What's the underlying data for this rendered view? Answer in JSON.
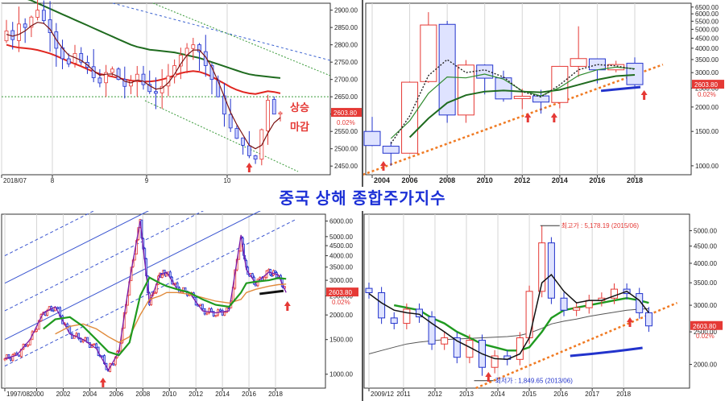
{
  "page_title": "중국 상해 종합주가지수",
  "chart_data": [
    {
      "id": "daily",
      "type": "candlestick",
      "x_ticks": [
        "2018/07",
        "8",
        "9",
        "10"
      ],
      "y_ticks": [
        "2900.00",
        "2850.00",
        "2800.00",
        "2750.00",
        "2700.00",
        "2650.00",
        "2600.00",
        "2550.00",
        "2500.00",
        "2450.00"
      ],
      "ylim": [
        2425,
        2920
      ],
      "last_price": "2603.80",
      "change": "0.02%",
      "annotations": [
        "상승",
        "마감"
      ],
      "close": [
        2840,
        2815,
        2860,
        2850,
        2880,
        2900,
        2870,
        2835,
        2790,
        2760,
        2745,
        2775,
        2750,
        2735,
        2705,
        2690,
        2720,
        2730,
        2700,
        2680,
        2695,
        2715,
        2685,
        2665,
        2660,
        2680,
        2710,
        2740,
        2770,
        2790,
        2800,
        2780,
        2740,
        2700,
        2650,
        2600,
        2560,
        2530,
        2510,
        2480,
        2470,
        2555,
        2640,
        2600,
        2603.8
      ],
      "ma_red": [
        2800,
        2795,
        2792,
        2790,
        2788,
        2785,
        2780,
        2775,
        2768,
        2760,
        2752,
        2745,
        2738,
        2730,
        2722,
        2716,
        2712,
        2708,
        2704,
        2700,
        2697,
        2695,
        2694,
        2694,
        2696,
        2700,
        2705,
        2712,
        2718,
        2722,
        2724,
        2722,
        2716,
        2708,
        2698,
        2688,
        2678,
        2670,
        2664,
        2660,
        2658,
        2662,
        2666,
        2664,
        2660
      ],
      "ma_green": [
        2950,
        2945,
        2940,
        2934,
        2928,
        2920,
        2912,
        2904,
        2896,
        2888,
        2880,
        2872,
        2864,
        2856,
        2848,
        2840,
        2832,
        2824,
        2816,
        2808,
        2800,
        2794,
        2790,
        2786,
        2784,
        2782,
        2780,
        2778,
        2774,
        2770,
        2766,
        2762,
        2756,
        2750,
        2744,
        2738,
        2732,
        2726,
        2720,
        2715,
        2712,
        2710,
        2708,
        2706,
        2704
      ],
      "ma_black": [
        2830,
        2825,
        2830,
        2840,
        2855,
        2865,
        2862,
        2845,
        2815,
        2790,
        2770,
        2763,
        2755,
        2742,
        2725,
        2712,
        2715,
        2716,
        2708,
        2695,
        2690,
        2698,
        2695,
        2682,
        2672,
        2675,
        2690,
        2715,
        2745,
        2770,
        2785,
        2785,
        2765,
        2735,
        2695,
        2650,
        2605,
        2570,
        2540,
        2510,
        2500,
        2510,
        2545,
        2575,
        2590
      ],
      "guides": {
        "green_level": 2650
      }
    },
    {
      "id": "yearly",
      "type": "candlestick",
      "y_scale": "log",
      "x_ticks": [
        "2004",
        "2006",
        "2008",
        "2010",
        "2012",
        "2014",
        "2016",
        "2018"
      ],
      "y_ticks": [
        "6500.00",
        "6000.00",
        "5500.00",
        "5000.00",
        "4500.00",
        "4000.00",
        "3500.00",
        "3000.00",
        "2500.00",
        "2000.00",
        "1500.00",
        "1000.00"
      ],
      "ylim": [
        900,
        6800
      ],
      "last_price": "2603.80",
      "change": "0.02%",
      "years": [
        2004,
        2005,
        2006,
        2007,
        2008,
        2009,
        2010,
        2011,
        2012,
        2013,
        2014,
        2015,
        2016,
        2017,
        2018
      ],
      "open": [
        1500,
        1260,
        1160,
        2700,
        5300,
        1820,
        3280,
        2820,
        2210,
        2280,
        2110,
        3230,
        3530,
        3100,
        3350
      ],
      "close": [
        1270,
        1160,
        2680,
        5260,
        1820,
        3280,
        2810,
        2200,
        2270,
        2120,
        3230,
        3540,
        3100,
        3300,
        2604
      ],
      "high": [
        1780,
        1330,
        2700,
        6120,
        5520,
        3480,
        3310,
        3070,
        2480,
        2450,
        3240,
        5180,
        3540,
        3450,
        3590
      ],
      "low": [
        1260,
        1000,
        1160,
        2660,
        1660,
        1660,
        2320,
        2130,
        1950,
        1850,
        1970,
        2850,
        2640,
        3010,
        2480
      ],
      "ma_green": [
        null,
        null,
        1400,
        1750,
        2100,
        2300,
        2400,
        2430,
        2400,
        2380,
        2450,
        2600,
        2760,
        2880,
        2920
      ],
      "ma_dark": [
        null,
        1380,
        1700,
        2350,
        2850,
        2820,
        2950,
        2780,
        2420,
        2280,
        2520,
        2900,
        3100,
        3200,
        3140
      ],
      "ma_dotted": [
        null,
        1300,
        1800,
        2900,
        3500,
        3000,
        3100,
        2850,
        2400,
        2250,
        2600,
        3100,
        3300,
        3250,
        3120
      ],
      "support": {
        "from": [
          2003.5,
          900
        ],
        "to": [
          2019.5,
          3300
        ]
      }
    },
    {
      "id": "monthly",
      "type": "candlestick",
      "y_scale": "log",
      "x_ticks": [
        "1997/08",
        "2000",
        "2002",
        "2004",
        "2006",
        "2008",
        "2010",
        "2012",
        "2014",
        "2016",
        "2018"
      ],
      "y_ticks": [
        "6000.00",
        "5000.00",
        "4500.00",
        "4000.00",
        "3500.00",
        "3000.00",
        "2500.00",
        "2000.00",
        "1500.00",
        "1000.00"
      ],
      "ylim": [
        850,
        6500
      ],
      "last_price": "2603.80",
      "change": "0.02%",
      "t": [
        1997.6,
        1998.5,
        1999.5,
        2000.5,
        2001.4,
        2002.5,
        2003.5,
        2004.5,
        2005.4,
        2006.2,
        2007.0,
        2007.8,
        2008.5,
        2009.3,
        2009.8,
        2010.6,
        2011.5,
        2012.5,
        2013.5,
        2014.5,
        2015.4,
        2015.8,
        2016.5,
        2017.5,
        2018.2,
        2018.8
      ],
      "price": [
        1200,
        1250,
        1500,
        2050,
        2200,
        1600,
        1500,
        1350,
        1050,
        1300,
        3000,
        6000,
        2300,
        3200,
        3300,
        2700,
        2600,
        2100,
        2050,
        2100,
        5100,
        3400,
        2900,
        3300,
        3200,
        2600
      ],
      "ma_green": [
        null,
        null,
        null,
        1700,
        1900,
        1950,
        1750,
        1500,
        1300,
        1250,
        1450,
        2500,
        3100,
        2900,
        2800,
        2700,
        2600,
        2400,
        2250,
        2200,
        2600,
        2900,
        2950,
        3000,
        3080,
        3050
      ],
      "ma_orange": [
        null,
        null,
        null,
        null,
        1600,
        1750,
        1800,
        1700,
        1550,
        1450,
        1550,
        2000,
        2400,
        2500,
        2600,
        2600,
        2550,
        2450,
        2350,
        2300,
        2400,
        2600,
        2700,
        2800,
        2850,
        2870
      ],
      "channel": {
        "slope_per_year": 0.034,
        "bases": [
          4000,
          2900,
          2100,
          1500,
          1100
        ]
      }
    },
    {
      "id": "quarterly",
      "type": "candlestick",
      "y_scale": "log",
      "x_ticks": [
        "2009/12",
        "2011",
        "2012",
        "2013",
        "2014",
        "2015",
        "2016",
        "2017",
        "2018"
      ],
      "y_ticks": [
        "5000.00",
        "4500.00",
        "4000.00",
        "3500.00",
        "3000.00",
        "2500.00",
        "2000.00"
      ],
      "ylim": [
        1700,
        5600
      ],
      "last_price": "2603.80",
      "change": "0.02%",
      "annotations": [
        "최고가 : 5,178.19 (2015/06)",
        "최저가 : 1,849.65 (2013/06)"
      ],
      "t": [
        2009.9,
        2010.3,
        2010.7,
        2011.1,
        2011.5,
        2011.9,
        2012.3,
        2012.7,
        2013.1,
        2013.5,
        2013.9,
        2014.3,
        2014.7,
        2015.0,
        2015.4,
        2015.7,
        2016.1,
        2016.5,
        2016.9,
        2017.3,
        2017.7,
        2018.1,
        2018.5,
        2018.8
      ],
      "price": [
        3270,
        2750,
        2650,
        2920,
        2770,
        2300,
        2400,
        2100,
        2360,
        1960,
        2120,
        2070,
        2400,
        3300,
        4600,
        3150,
        2900,
        2950,
        3100,
        3150,
        3350,
        3250,
        2850,
        2604
      ],
      "ma_black": [
        3250,
        3050,
        2900,
        2850,
        2820,
        2650,
        2500,
        2350,
        2250,
        2150,
        2080,
        2070,
        2150,
        2400,
        3500,
        3700,
        3300,
        3050,
        3100,
        3100,
        3200,
        3300,
        3100,
        2850
      ],
      "ma_green": [
        null,
        null,
        3000,
        2950,
        2900,
        2750,
        2650,
        2500,
        2400,
        2300,
        2250,
        2200,
        2200,
        2250,
        2500,
        2750,
        2900,
        2950,
        3000,
        3050,
        3100,
        3150,
        3100,
        3050
      ],
      "ma_gray": [
        2150,
        2200,
        2250,
        2300,
        2330,
        2350,
        2370,
        2380,
        2390,
        2400,
        2410,
        2420,
        2440,
        2480,
        2560,
        2640,
        2690,
        2730,
        2780,
        2820,
        2860,
        2900,
        2920,
        2930
      ],
      "support": {
        "from": [
          2013.3,
          1700
        ],
        "to": [
          2019.7,
          3050
        ]
      }
    }
  ]
}
